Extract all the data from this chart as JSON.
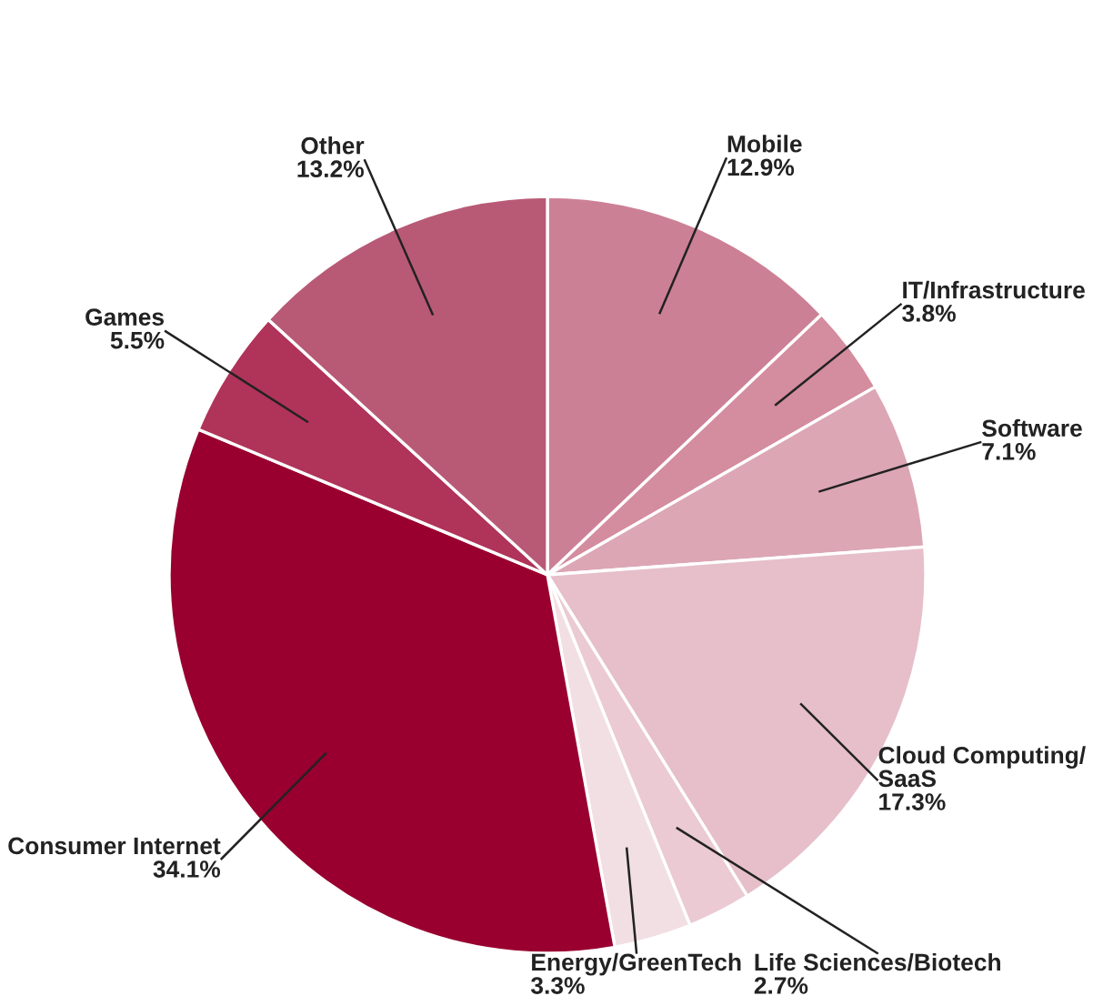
{
  "chart_data": {
    "type": "pie",
    "categories": [
      "Mobile",
      "IT/Infrastructure",
      "Software",
      "Cloud Computing/\nSaaS",
      "Life Sciences/Biotech",
      "Energy/GreenTech",
      "Consumer Internet",
      "Games",
      "Other"
    ],
    "values": [
      12.9,
      3.8,
      7.1,
      17.3,
      2.7,
      3.3,
      34.1,
      5.5,
      13.2
    ],
    "value_labels": [
      "12.9%",
      "3.8%",
      "7.1%",
      "17.3%",
      "2.7%",
      "3.3%",
      "34.1%",
      "5.5%",
      "13.2%"
    ],
    "colors": [
      "#cc8096",
      "#d48c9f",
      "#dca6b5",
      "#e6bfcb",
      "#ebcad3",
      "#f2dfe3",
      "#990030",
      "#b03359",
      "#b85a76"
    ],
    "legend": false
  }
}
